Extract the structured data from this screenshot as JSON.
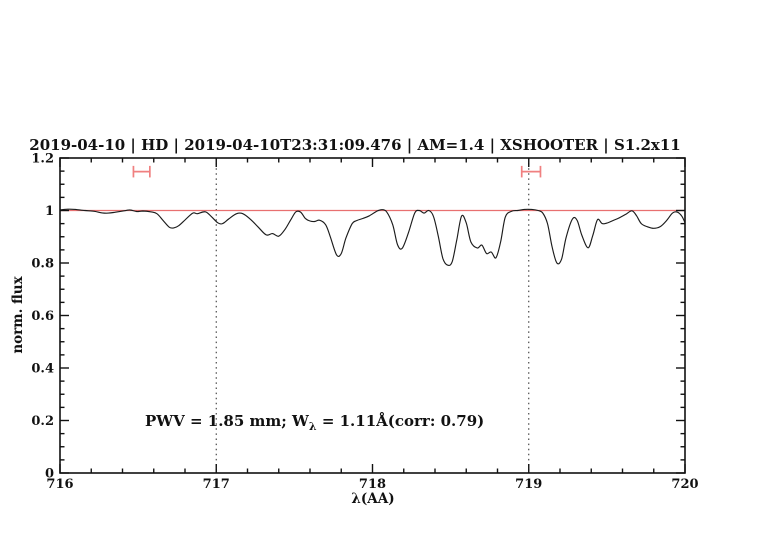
{
  "background": "#ffffff",
  "chart_data": {
    "type": "line",
    "title": "2019-04-10 | HD | 2019-04-10T23:31:09.476 | AM=1.4 | XSHOOTER | S1.2x11",
    "xlabel": "λ(AA)",
    "ylabel": "norm. flux",
    "xlim": [
      716,
      720
    ],
    "ylim": [
      0,
      1.2
    ],
    "x_major_tick_step": 1,
    "x_minor_tick_step": 0.2,
    "y_major_tick_step": 0.2,
    "y_minor_tick_step": 0.05,
    "x_tick_labels": [
      "716",
      "717",
      "718",
      "719",
      "720"
    ],
    "y_tick_labels": [
      "0",
      "0.2",
      "0.4",
      "0.6",
      "0.8",
      "1",
      "1.2"
    ],
    "grid": "off",
    "legend": "none",
    "colors": {
      "accent_blue": "#2222cc",
      "marker_pink": "#f08080",
      "continuum_red": "#e87070",
      "curve_black": "#1c1c1c",
      "dotted_gray": "#3a3a3a",
      "frame_black": "#111111"
    },
    "annotation": {
      "prefix": "PWV = 1.85 mm; W",
      "subscript": "λ",
      "suffix": " = 1.11Å(corr: 0.79)"
    },
    "continuum_line": {
      "y": 1.0
    },
    "dotted_vlines": [
      717,
      719
    ],
    "pwv_markers": [
      {
        "x1": 716.47,
        "x2": 716.575,
        "y": 1.148,
        "cap_half_height": 0.022
      },
      {
        "x1": 718.955,
        "x2": 719.075,
        "y": 1.148,
        "cap_half_height": 0.022
      }
    ],
    "series": [
      {
        "name": "normalized-spectrum",
        "points": [
          [
            716.0,
            1.002
          ],
          [
            716.05,
            1.005
          ],
          [
            716.1,
            1.004
          ],
          [
            716.16,
            1.0
          ],
          [
            716.22,
            0.997
          ],
          [
            716.27,
            0.991
          ],
          [
            716.31,
            0.99
          ],
          [
            716.35,
            0.993
          ],
          [
            716.41,
            0.999
          ],
          [
            716.45,
            1.002
          ],
          [
            716.49,
            0.996
          ],
          [
            716.53,
            0.998
          ],
          [
            716.58,
            0.995
          ],
          [
            716.62,
            0.988
          ],
          [
            716.66,
            0.962
          ],
          [
            716.7,
            0.936
          ],
          [
            716.73,
            0.934
          ],
          [
            716.76,
            0.942
          ],
          [
            716.8,
            0.964
          ],
          [
            716.85,
            0.99
          ],
          [
            716.88,
            0.988
          ],
          [
            716.93,
            0.995
          ],
          [
            716.97,
            0.976
          ],
          [
            717.01,
            0.953
          ],
          [
            717.04,
            0.95
          ],
          [
            717.08,
            0.968
          ],
          [
            717.13,
            0.988
          ],
          [
            717.17,
            0.988
          ],
          [
            717.22,
            0.966
          ],
          [
            717.27,
            0.936
          ],
          [
            717.32,
            0.907
          ],
          [
            717.36,
            0.912
          ],
          [
            717.4,
            0.902
          ],
          [
            717.44,
            0.928
          ],
          [
            717.48,
            0.968
          ],
          [
            717.51,
            0.995
          ],
          [
            717.54,
            0.994
          ],
          [
            717.57,
            0.97
          ],
          [
            717.6,
            0.96
          ],
          [
            717.63,
            0.958
          ],
          [
            717.66,
            0.963
          ],
          [
            717.7,
            0.946
          ],
          [
            717.73,
            0.9
          ],
          [
            717.77,
            0.831
          ],
          [
            717.8,
            0.836
          ],
          [
            717.83,
            0.895
          ],
          [
            717.87,
            0.95
          ],
          [
            717.9,
            0.962
          ],
          [
            717.94,
            0.97
          ],
          [
            717.98,
            0.98
          ],
          [
            718.03,
            0.998
          ],
          [
            718.06,
            1.003
          ],
          [
            718.09,
            0.995
          ],
          [
            718.13,
            0.945
          ],
          [
            718.16,
            0.87
          ],
          [
            718.19,
            0.856
          ],
          [
            718.23,
            0.915
          ],
          [
            718.27,
            0.99
          ],
          [
            718.3,
            1.0
          ],
          [
            718.33,
            0.99
          ],
          [
            718.36,
            1.0
          ],
          [
            718.39,
            0.978
          ],
          [
            718.42,
            0.905
          ],
          [
            718.45,
            0.818
          ],
          [
            718.48,
            0.792
          ],
          [
            718.51,
            0.805
          ],
          [
            718.54,
            0.89
          ],
          [
            718.57,
            0.979
          ],
          [
            718.6,
            0.952
          ],
          [
            718.63,
            0.88
          ],
          [
            718.67,
            0.857
          ],
          [
            718.7,
            0.868
          ],
          [
            718.73,
            0.836
          ],
          [
            718.76,
            0.842
          ],
          [
            718.79,
            0.82
          ],
          [
            718.82,
            0.88
          ],
          [
            718.85,
            0.975
          ],
          [
            718.89,
            0.997
          ],
          [
            718.93,
            1.0
          ],
          [
            718.97,
            1.004
          ],
          [
            719.02,
            1.004
          ],
          [
            719.06,
            1.0
          ],
          [
            719.09,
            0.99
          ],
          [
            719.12,
            0.95
          ],
          [
            719.15,
            0.86
          ],
          [
            719.18,
            0.8
          ],
          [
            719.21,
            0.815
          ],
          [
            719.24,
            0.9
          ],
          [
            719.28,
            0.968
          ],
          [
            719.31,
            0.962
          ],
          [
            719.34,
            0.905
          ],
          [
            719.38,
            0.858
          ],
          [
            719.41,
            0.905
          ],
          [
            719.44,
            0.965
          ],
          [
            719.47,
            0.95
          ],
          [
            719.5,
            0.952
          ],
          [
            719.54,
            0.962
          ],
          [
            719.58,
            0.972
          ],
          [
            719.62,
            0.985
          ],
          [
            719.66,
            0.999
          ],
          [
            719.69,
            0.98
          ],
          [
            719.72,
            0.95
          ],
          [
            719.76,
            0.938
          ],
          [
            719.8,
            0.932
          ],
          [
            719.84,
            0.938
          ],
          [
            719.88,
            0.96
          ],
          [
            719.92,
            0.99
          ],
          [
            719.95,
            0.994
          ],
          [
            719.98,
            0.978
          ],
          [
            720.0,
            0.953
          ]
        ]
      }
    ]
  }
}
